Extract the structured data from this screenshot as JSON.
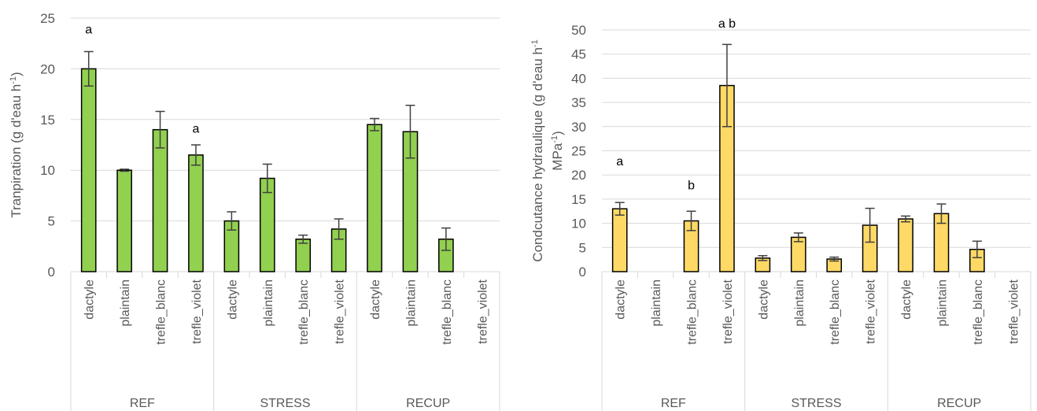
{
  "chart_data": [
    {
      "type": "bar",
      "color": "#92d050",
      "grid": true,
      "ylabel_lines": [
        [
          {
            "text": "Tranpiration (g d'eau h"
          },
          {
            "sup": "-1"
          },
          {
            "text": ")"
          }
        ]
      ],
      "ylim": [
        0,
        25
      ],
      "yticks": [
        0,
        5,
        10,
        15,
        20,
        25
      ],
      "groups": [
        {
          "name": "REF",
          "categories": [
            "dactyle",
            "plaintain",
            "trefle_blanc",
            "trefle_violet"
          ]
        },
        {
          "name": "STRESS",
          "categories": [
            "dactyle",
            "plaintain",
            "trefle_blanc",
            "trefle_violet"
          ]
        },
        {
          "name": "RECUP",
          "categories": [
            "dactyle",
            "plaintain",
            "trefle_blanc",
            "trefle_violet"
          ]
        }
      ],
      "values": [
        20,
        10,
        14,
        11.5,
        5,
        9.2,
        3.2,
        4.2,
        14.5,
        13.8,
        3.2,
        null
      ],
      "errors": [
        1.7,
        0.1,
        1.8,
        1.0,
        0.9,
        1.4,
        0.4,
        1.0,
        0.6,
        2.6,
        1.1,
        null
      ],
      "annotations": [
        {
          "text": "a",
          "group": "REF",
          "category": "dactyle",
          "y": 23.5
        },
        {
          "text": "a",
          "group": "REF",
          "category": "trefle_violet",
          "y": 13.7
        }
      ]
    },
    {
      "type": "bar",
      "color": "#ffd966",
      "grid": true,
      "ylabel_lines": [
        [
          {
            "text": "Condcutance hydraulique (g d'eau h"
          },
          {
            "sup": "-1"
          }
        ],
        [
          {
            "text": "MPa"
          },
          {
            "sup": "-1"
          },
          {
            "text": ")"
          }
        ]
      ],
      "ylim": [
        0,
        50
      ],
      "yticks": [
        0,
        5,
        10,
        15,
        20,
        25,
        30,
        35,
        40,
        45,
        50
      ],
      "groups": [
        {
          "name": "REF",
          "categories": [
            "dactyle",
            "plaintain",
            "trefle_blanc",
            "trefle_violet"
          ]
        },
        {
          "name": "STRESS",
          "categories": [
            "dactyle",
            "plaintain",
            "trefle_blanc",
            "trefle_violet"
          ]
        },
        {
          "name": "RECUP",
          "categories": [
            "dactyle",
            "plaintain",
            "trefle_blanc",
            "trefle_violet"
          ]
        }
      ],
      "values": [
        13,
        null,
        10.5,
        38.5,
        2.8,
        7.1,
        2.6,
        9.6,
        10.9,
        12,
        4.6,
        null
      ],
      "errors": [
        1.3,
        null,
        2.0,
        8.5,
        0.5,
        0.9,
        0.4,
        3.5,
        0.6,
        2.0,
        1.7,
        null
      ],
      "annotations": [
        {
          "text": "a",
          "group": "REF",
          "category": "dactyle",
          "y": 22
        },
        {
          "text": "b",
          "group": "REF",
          "category": "trefle_blanc",
          "y": 17
        },
        {
          "text": "a  b",
          "group": "REF",
          "category": "trefle_violet",
          "y": 50.5
        }
      ]
    }
  ]
}
